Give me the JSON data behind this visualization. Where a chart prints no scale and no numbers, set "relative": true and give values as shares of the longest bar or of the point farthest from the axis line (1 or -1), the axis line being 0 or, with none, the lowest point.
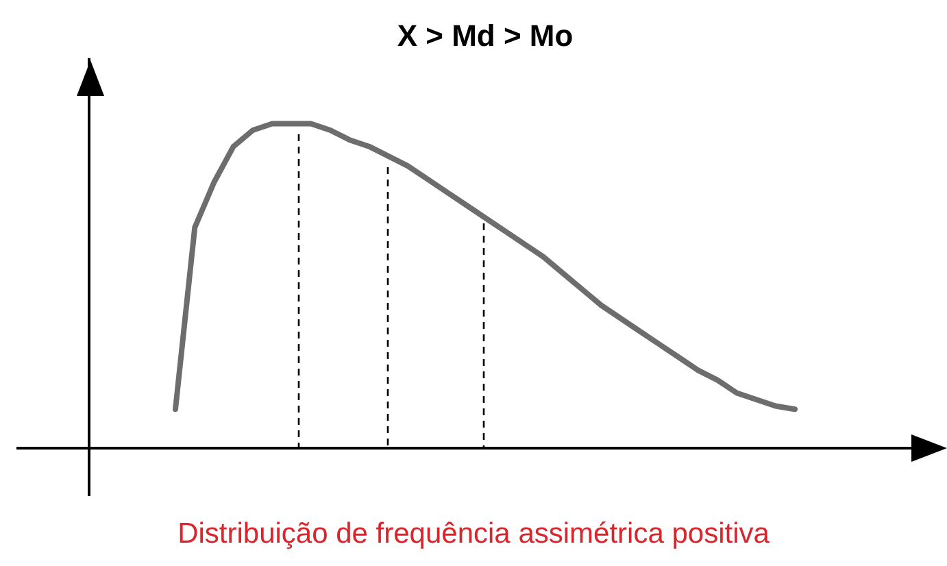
{
  "chart_data": {
    "type": "line",
    "title": "X > Md > Mo",
    "relative": true,
    "legend": false,
    "marker": "none",
    "line_style": "solid",
    "categories": [
      null,
      null,
      null,
      null,
      null,
      null,
      null,
      null,
      null,
      null,
      null,
      null,
      null,
      null,
      null,
      null,
      null,
      null,
      null,
      null,
      null,
      null,
      null,
      null,
      null,
      null,
      null,
      null,
      null,
      null,
      null,
      null,
      null
    ],
    "series": [
      {
        "color": "#6d6d6d",
        "values": [
          0.12,
          0.68,
          0.82,
          0.93,
          0.98,
          1.0,
          1.0,
          1.0,
          0.98,
          0.95,
          0.93,
          0.9,
          0.87,
          0.83,
          0.79,
          0.75,
          0.71,
          0.67,
          0.63,
          0.59,
          0.54,
          0.49,
          0.44,
          0.4,
          0.36,
          0.32,
          0.28,
          0.24,
          0.21,
          0.17,
          0.15,
          0.13,
          0.12
        ]
      }
    ],
    "annotations": [
      "Distribuição de frequência assimétrica positiva"
    ]
  }
}
